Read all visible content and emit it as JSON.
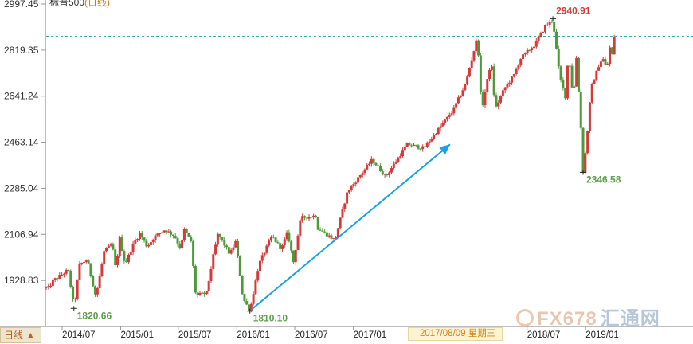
{
  "header": {
    "title": "标普500",
    "subtitle": "(日线)"
  },
  "footer": {
    "period_button": "日线 ▲",
    "cursor_date": "2017/08/09 星期三"
  },
  "watermark": {
    "brand": "FX678",
    "cn": "汇通网"
  },
  "colors": {
    "up": "#d43a3a",
    "down": "#4e9a3a",
    "arrow": "#1aa0e6",
    "dashed_line": "#3aaeb6"
  },
  "chart_data": {
    "type": "candlestick",
    "y_ticks": [
      "2997.45",
      "2819.35",
      "2641.24",
      "2463.14",
      "2285.04",
      "2106.94",
      "1928.83"
    ],
    "x_ticks": [
      "2014/07",
      "2015/01",
      "2015/07",
      "2016/01",
      "2016/07",
      "2017/01",
      "2018/07",
      "2019/01"
    ],
    "ylim": [
      1750.72,
      2997.45
    ],
    "annotations": [
      {
        "text": "2940.91",
        "date": "2018-09-20",
        "value": 2940.91
      },
      {
        "text": "2346.58",
        "date": "2018-12-24",
        "value": 2346.58
      },
      {
        "text": "1820.66",
        "date": "2014-08-07",
        "value": 1820.66
      },
      {
        "text": "1810.10",
        "date": "2016-02-11",
        "value": 1810.1
      }
    ],
    "reference_line": {
      "value": 2872.87
    },
    "trend_arrow": {
      "from": {
        "date": "2016-02-11",
        "value": 1810.1
      },
      "to": {
        "date": "2017-11-01",
        "value": 2455
      }
    },
    "trend_points": [
      [
        "2014-05-19",
        1900
      ],
      [
        "2014-06-05",
        1930
      ],
      [
        "2014-07-10",
        1960
      ],
      [
        "2014-07-20",
        1970
      ],
      [
        "2014-08-07",
        1825
      ],
      [
        "2014-08-25",
        1990
      ],
      [
        "2014-09-18",
        2010
      ],
      [
        "2014-10-15",
        1865
      ],
      [
        "2014-11-10",
        2040
      ],
      [
        "2014-12-05",
        2070
      ],
      [
        "2014-12-16",
        1975
      ],
      [
        "2014-12-29",
        2090
      ],
      [
        "2015-01-15",
        1990
      ],
      [
        "2015-02-10",
        2070
      ],
      [
        "2015-03-02",
        2110
      ],
      [
        "2015-03-25",
        2060
      ],
      [
        "2015-04-20",
        2100
      ],
      [
        "2015-05-20",
        2125
      ],
      [
        "2015-06-20",
        2100
      ],
      [
        "2015-07-08",
        2050
      ],
      [
        "2015-07-20",
        2125
      ],
      [
        "2015-08-10",
        2080
      ],
      [
        "2015-08-25",
        1870
      ],
      [
        "2015-09-28",
        1880
      ],
      [
        "2015-10-20",
        2030
      ],
      [
        "2015-11-03",
        2110
      ],
      [
        "2015-12-10",
        2030
      ],
      [
        "2015-12-29",
        2080
      ],
      [
        "2016-01-20",
        1860
      ],
      [
        "2016-02-11",
        1812
      ],
      [
        "2016-03-10",
        1990
      ],
      [
        "2016-04-20",
        2100
      ],
      [
        "2016-05-20",
        2050
      ],
      [
        "2016-06-08",
        2115
      ],
      [
        "2016-06-27",
        2000
      ],
      [
        "2016-07-20",
        2170
      ],
      [
        "2016-09-08",
        2180
      ],
      [
        "2016-09-12",
        2130
      ],
      [
        "2016-11-04",
        2085
      ],
      [
        "2016-12-13",
        2270
      ],
      [
        "2017-03-01",
        2395
      ],
      [
        "2017-04-13",
        2330
      ],
      [
        "2017-06-19",
        2455
      ],
      [
        "2017-08-10",
        2440
      ],
      [
        "2017-09-20",
        2505
      ],
      [
        "2017-11-10",
        2585
      ],
      [
        "2017-12-20",
        2690
      ],
      [
        "2018-01-26",
        2872
      ],
      [
        "2018-02-08",
        2585
      ],
      [
        "2018-03-10",
        2780
      ],
      [
        "2018-03-23",
        2590
      ],
      [
        "2018-04-20",
        2670
      ],
      [
        "2018-05-20",
        2720
      ],
      [
        "2018-06-12",
        2790
      ],
      [
        "2018-07-25",
        2840
      ],
      [
        "2018-08-29",
        2915
      ],
      [
        "2018-09-20",
        2935
      ],
      [
        "2018-10-11",
        2720
      ],
      [
        "2018-10-29",
        2640
      ],
      [
        "2018-11-08",
        2810
      ],
      [
        "2018-11-23",
        2630
      ],
      [
        "2018-12-03",
        2790
      ],
      [
        "2018-12-14",
        2590
      ],
      [
        "2018-12-24",
        2350
      ],
      [
        "2019-01-03",
        2450
      ],
      [
        "2019-01-18",
        2670
      ],
      [
        "2019-02-15",
        2775
      ],
      [
        "2019-02-27",
        2785
      ],
      [
        "2019-03-08",
        2740
      ],
      [
        "2019-03-21",
        2855
      ],
      [
        "2019-03-25",
        2800
      ],
      [
        "2019-04-01",
        2870
      ]
    ]
  }
}
